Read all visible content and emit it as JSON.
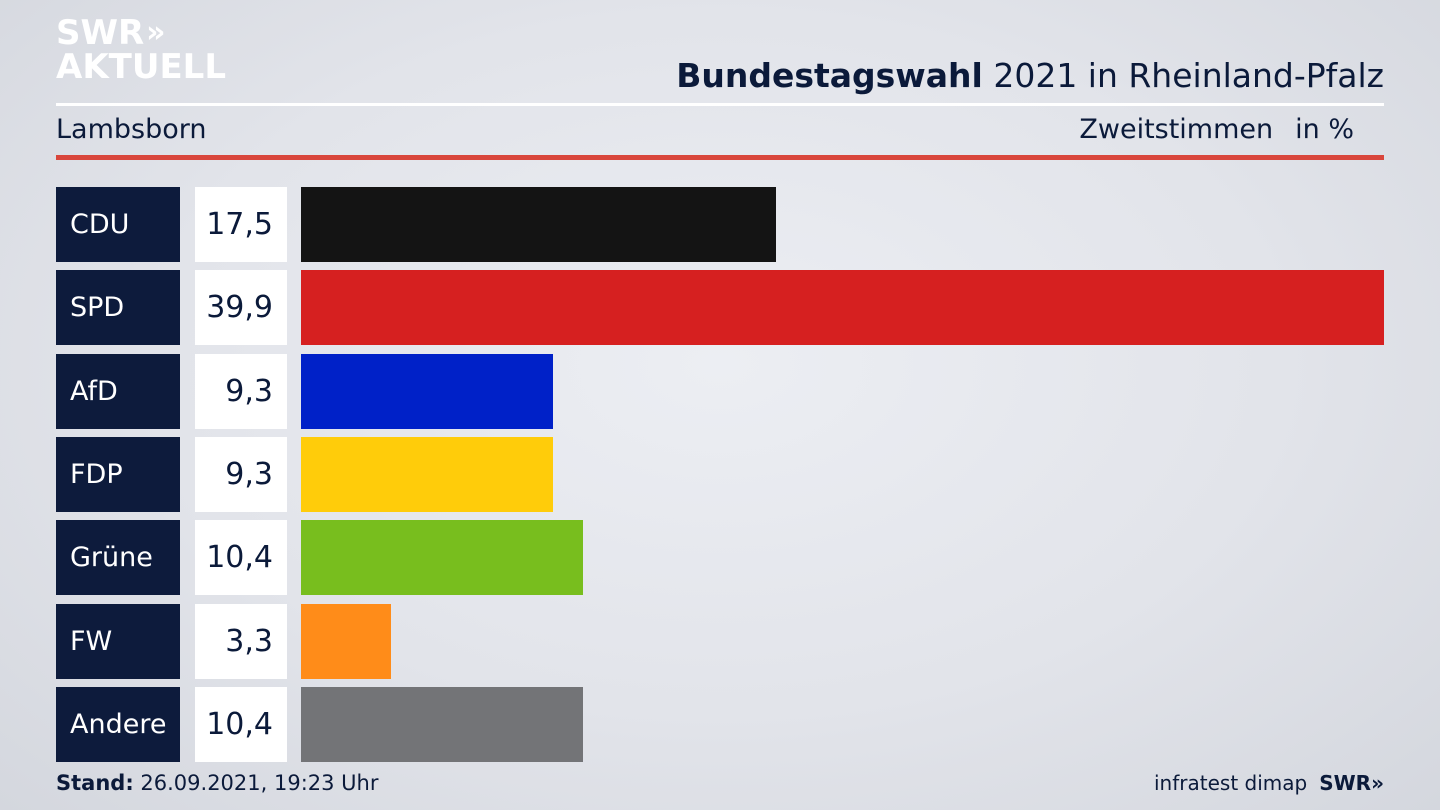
{
  "branding": {
    "logo_line1": "SWR",
    "logo_chevrons": "»",
    "logo_line2": "AKTUELL",
    "footer_logo": "SWR»"
  },
  "header": {
    "title_bold": "Bundestagswahl",
    "title_rest": " 2021 in Rheinland-Pfalz",
    "location": "Lambsborn",
    "measure": "Zweitstimmen",
    "unit": "in %"
  },
  "footer": {
    "stand_label": "Stand:",
    "stand_value": " 26.09.2021, 19:23 Uhr",
    "source": "infratest dimap"
  },
  "chart_data": {
    "type": "bar",
    "orientation": "horizontal",
    "categories": [
      "CDU",
      "SPD",
      "AfD",
      "FDP",
      "Grüne",
      "FW",
      "Andere"
    ],
    "values": [
      17.5,
      39.9,
      9.3,
      9.3,
      10.4,
      3.3,
      10.4
    ],
    "value_labels": [
      "17,5",
      "39,9",
      "9,3",
      "9,3",
      "10,4",
      "3,3",
      "10,4"
    ],
    "colors": [
      "#141414",
      "#d62020",
      "#0021c8",
      "#ffcc0a",
      "#78be1e",
      "#ff8c19",
      "#737477"
    ],
    "xlim": [
      0,
      39.9
    ]
  }
}
